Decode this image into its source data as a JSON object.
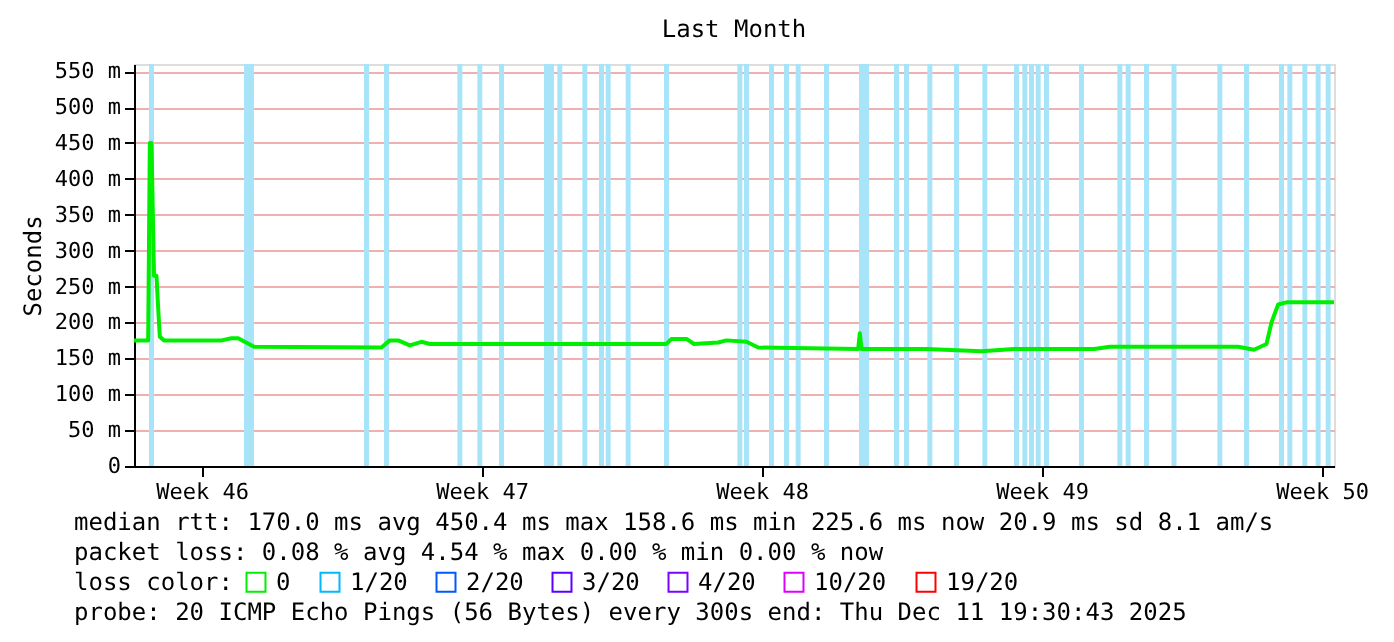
{
  "chart_data": {
    "type": "line",
    "title": "Last Month",
    "ylabel": "Seconds",
    "x": [
      "2025-11-11T19:30",
      "2025-11-12T04:00",
      "2025-11-12T05:00",
      "2025-11-12T06:00",
      "2025-11-12T07:30",
      "2025-11-12T09:00",
      "2025-11-12T10:00",
      "2025-11-12T11:00",
      "2025-11-12T13:30",
      "2025-11-14T00:00",
      "2025-11-14T06:00",
      "2025-11-14T10:00",
      "2025-11-14T19:30",
      "2025-11-18T00:00",
      "2025-11-18T05:00",
      "2025-11-18T10:00",
      "2025-11-18T17:00",
      "2025-11-19T00:00",
      "2025-11-19T05:00",
      "2025-11-25T03:00",
      "2025-11-25T06:00",
      "2025-11-25T15:00",
      "2025-11-25T19:30",
      "2025-11-26T10:00",
      "2025-11-26T15:00",
      "2025-11-27T03:00",
      "2025-11-27T10:00",
      "2025-11-29T22:00",
      "2025-11-29T23:00",
      "2025-11-30T00:00",
      "2025-12-01T15:00",
      "2025-12-03T00:00",
      "2025-12-03T19:30",
      "2025-12-05T19:30",
      "2025-12-06T05:00",
      "2025-12-09T10:00",
      "2025-12-09T19:30",
      "2025-12-10T03:00",
      "2025-12-10T06:00",
      "2025-12-10T10:00",
      "2025-12-10T15:00",
      "2025-12-11T19:30"
    ],
    "series": [
      {
        "name": "0",
        "color": "#00ee00",
        "values": [
          175,
          175,
          450,
          450,
          265,
          265,
          220,
          180,
          175,
          175,
          178,
          178,
          166,
          165,
          175,
          175,
          168,
          173,
          170,
          170,
          177,
          177,
          170,
          172,
          175,
          173,
          165,
          163,
          185,
          163,
          163,
          160,
          163,
          163,
          166,
          166,
          162,
          170,
          200,
          225,
          228,
          228
        ]
      },
      {
        "name": "1/20",
        "color": "#00b8ff",
        "values": [
          null,
          null,
          null,
          null,
          null,
          null,
          null,
          null,
          null,
          null,
          null,
          null,
          null,
          null,
          null,
          null,
          null,
          null,
          null,
          null,
          null,
          null,
          null,
          null,
          null,
          null,
          null,
          null,
          null,
          null,
          null,
          null,
          null,
          null,
          null,
          null,
          null,
          null,
          null,
          null,
          null,
          null
        ]
      },
      {
        "name": "2/20",
        "color": "#0059ff",
        "values": [
          null,
          null,
          null,
          null,
          null,
          null,
          null,
          null,
          null,
          null,
          null,
          null,
          null,
          null,
          null,
          null,
          null,
          null,
          null,
          null,
          null,
          null,
          null,
          null,
          null,
          null,
          null,
          null,
          null,
          null,
          null,
          null,
          null,
          null,
          null,
          null,
          null,
          null,
          null,
          null,
          null,
          null
        ]
      },
      {
        "name": "3/20",
        "color": "#5e00ff",
        "values": [
          null,
          null,
          null,
          null,
          null,
          null,
          null,
          null,
          null,
          null,
          null,
          null,
          null,
          null,
          null,
          null,
          null,
          null,
          null,
          null,
          null,
          null,
          null,
          null,
          null,
          null,
          null,
          null,
          null,
          null,
          null,
          null,
          null,
          null,
          null,
          null,
          null,
          null,
          null,
          null,
          null,
          null
        ]
      },
      {
        "name": "4/20",
        "color": "#7e00ff",
        "values": [
          null,
          null,
          null,
          null,
          null,
          null,
          null,
          null,
          null,
          null,
          null,
          null,
          null,
          null,
          null,
          null,
          null,
          null,
          null,
          null,
          null,
          null,
          null,
          null,
          null,
          null,
          null,
          null,
          null,
          null,
          null,
          null,
          null,
          null,
          null,
          null,
          null,
          null,
          null,
          null,
          null,
          null
        ]
      },
      {
        "name": "10/20",
        "color": "#dd00ff",
        "values": [
          null,
          null,
          null,
          null,
          null,
          null,
          null,
          null,
          null,
          null,
          null,
          null,
          null,
          null,
          null,
          null,
          null,
          null,
          null,
          null,
          null,
          null,
          null,
          null,
          null,
          null,
          null,
          null,
          null,
          null,
          null,
          null,
          null,
          null,
          null,
          null,
          null,
          null,
          null,
          null,
          null,
          null
        ]
      },
      {
        "name": "19/20",
        "color": "#ff0000",
        "values": [
          null,
          null,
          null,
          null,
          null,
          null,
          null,
          null,
          null,
          null,
          null,
          null,
          null,
          null,
          null,
          null,
          null,
          null,
          null,
          null,
          null,
          null,
          null,
          null,
          null,
          null,
          null,
          null,
          null,
          null,
          null,
          null,
          null,
          null,
          null,
          null,
          null,
          null,
          null,
          null,
          null,
          null
        ]
      }
    ],
    "legend_title": "loss color:",
    "legend": "bottom",
    "xlim": [
      "2025-11-11T19:30",
      "2025-12-11T19:30"
    ],
    "xticks": [
      {
        "value": "2025-11-13T12:00",
        "label": "Week 46"
      },
      {
        "value": "2025-11-20T12:00",
        "label": "Week 47"
      },
      {
        "value": "2025-11-27T12:00",
        "label": "Week 48"
      },
      {
        "value": "2025-12-04T12:00",
        "label": "Week 49"
      },
      {
        "value": "2025-12-11T12:00",
        "label": "Week 50"
      }
    ],
    "ylim": [
      0,
      560
    ],
    "yticks": [
      {
        "value": 0,
        "label": "0"
      },
      {
        "value": 50,
        "label": "50 m"
      },
      {
        "value": 100,
        "label": "100 m"
      },
      {
        "value": 150,
        "label": "150 m"
      },
      {
        "value": 200,
        "label": "200 m"
      },
      {
        "value": 250,
        "label": "250 m"
      },
      {
        "value": 300,
        "label": "300 m"
      },
      {
        "value": 350,
        "label": "350 m"
      },
      {
        "value": 400,
        "label": "400 m"
      },
      {
        "value": 450,
        "label": "450 m"
      },
      {
        "value": 500,
        "label": "500 m"
      },
      {
        "value": 550,
        "label": "550 m"
      }
    ],
    "grid": "y",
    "ref_lines": [
      {
        "axis": "x",
        "value": "2025-11-12T06:00",
        "color": "#a8e4f8"
      },
      {
        "axis": "x",
        "value": "2025-11-14T15:00",
        "color": "#a8e4f8"
      },
      {
        "axis": "x",
        "value": "2025-11-14T18:00",
        "color": "#a8e4f8"
      },
      {
        "axis": "x",
        "value": "2025-11-17T15:00",
        "color": "#a8e4f8"
      },
      {
        "axis": "x",
        "value": "2025-11-18T03:00",
        "color": "#a8e4f8"
      },
      {
        "axis": "x",
        "value": "2025-11-19T23:00",
        "color": "#a8e4f8"
      },
      {
        "axis": "x",
        "value": "2025-11-20T11:00",
        "color": "#a8e4f8"
      },
      {
        "axis": "x",
        "value": "2025-11-21T00:00",
        "color": "#a8e4f8"
      },
      {
        "axis": "x",
        "value": "2025-11-22T03:00",
        "color": "#a8e4f8"
      },
      {
        "axis": "x",
        "value": "2025-11-22T06:00",
        "color": "#a8e4f8"
      },
      {
        "axis": "x",
        "value": "2025-11-22T11:00",
        "color": "#a8e4f8"
      },
      {
        "axis": "x",
        "value": "2025-11-23T02:00",
        "color": "#a8e4f8"
      },
      {
        "axis": "x",
        "value": "2025-11-23T12:00",
        "color": "#a8e4f8"
      },
      {
        "axis": "x",
        "value": "2025-11-23T16:00",
        "color": "#a8e4f8"
      },
      {
        "axis": "x",
        "value": "2025-11-24T04:00",
        "color": "#a8e4f8"
      },
      {
        "axis": "x",
        "value": "2025-11-25T03:00",
        "color": "#a8e4f8"
      },
      {
        "axis": "x",
        "value": "2025-11-26T23:00",
        "color": "#a8e4f8"
      },
      {
        "axis": "x",
        "value": "2025-11-27T03:00",
        "color": "#a8e4f8"
      },
      {
        "axis": "x",
        "value": "2025-11-27T18:00",
        "color": "#a8e4f8"
      },
      {
        "axis": "x",
        "value": "2025-11-28T03:00",
        "color": "#a8e4f8"
      },
      {
        "axis": "x",
        "value": "2025-11-28T10:00",
        "color": "#a8e4f8"
      },
      {
        "axis": "x",
        "value": "2025-11-29T03:00",
        "color": "#a8e4f8"
      },
      {
        "axis": "x",
        "value": "2025-11-30T00:00",
        "color": "#a8e4f8"
      },
      {
        "axis": "x",
        "value": "2025-11-30T03:00",
        "color": "#a8e4f8"
      },
      {
        "axis": "x",
        "value": "2025-11-30T21:00",
        "color": "#a8e4f8"
      },
      {
        "axis": "x",
        "value": "2025-12-01T03:00",
        "color": "#a8e4f8"
      },
      {
        "axis": "x",
        "value": "2025-12-01T17:00",
        "color": "#a8e4f8"
      },
      {
        "axis": "x",
        "value": "2025-12-02T09:00",
        "color": "#a8e4f8"
      },
      {
        "axis": "x",
        "value": "2025-12-03T02:00",
        "color": "#a8e4f8"
      },
      {
        "axis": "x",
        "value": "2025-12-03T21:00",
        "color": "#a8e4f8"
      },
      {
        "axis": "x",
        "value": "2025-12-04T02:00",
        "color": "#a8e4f8"
      },
      {
        "axis": "x",
        "value": "2025-12-04T06:00",
        "color": "#a8e4f8"
      },
      {
        "axis": "x",
        "value": "2025-12-04T10:00",
        "color": "#a8e4f8"
      },
      {
        "axis": "x",
        "value": "2025-12-04T15:00",
        "color": "#a8e4f8"
      },
      {
        "axis": "x",
        "value": "2025-12-05T12:00",
        "color": "#a8e4f8"
      },
      {
        "axis": "x",
        "value": "2025-12-06T11:00",
        "color": "#a8e4f8"
      },
      {
        "axis": "x",
        "value": "2025-12-06T16:00",
        "color": "#a8e4f8"
      },
      {
        "axis": "x",
        "value": "2025-12-07T03:00",
        "color": "#a8e4f8"
      },
      {
        "axis": "x",
        "value": "2025-12-07T19:30",
        "color": "#a8e4f8"
      },
      {
        "axis": "x",
        "value": "2025-12-08T23:00",
        "color": "#a8e4f8"
      },
      {
        "axis": "x",
        "value": "2025-12-09T15:00",
        "color": "#a8e4f8"
      },
      {
        "axis": "x",
        "value": "2025-12-10T12:00",
        "color": "#a8e4f8"
      },
      {
        "axis": "x",
        "value": "2025-12-10T17:00",
        "color": "#a8e4f8"
      },
      {
        "axis": "x",
        "value": "2025-12-11T02:00",
        "color": "#a8e4f8"
      },
      {
        "axis": "x",
        "value": "2025-12-11T10:00",
        "color": "#a8e4f8"
      },
      {
        "axis": "x",
        "value": "2025-12-11T16:00",
        "color": "#a8e4f8"
      }
    ],
    "annotations": [
      "median rtt:  170.0 ms avg  450.4 ms max  158.6 ms min  225.6 ms now  20.9 ms sd  8.1   am/s",
      "packet loss: 0.08 % avg  4.54 % max  0.00 % min  0.00 % now",
      "probe:       20 ICMP Echo Pings (56 Bytes) every 300s              end: Thu Dec 11 19:30:43 2025"
    ],
    "line_style": "solid",
    "marker": "none"
  }
}
